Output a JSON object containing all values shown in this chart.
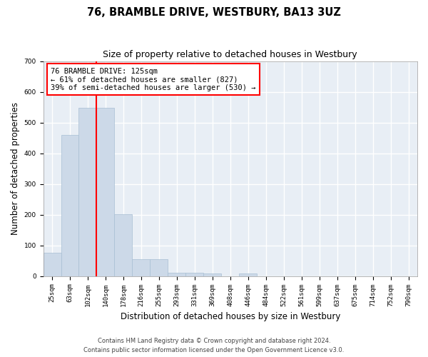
{
  "title": "76, BRAMBLE DRIVE, WESTBURY, BA13 3UZ",
  "subtitle": "Size of property relative to detached houses in Westbury",
  "xlabel": "Distribution of detached houses by size in Westbury",
  "ylabel": "Number of detached properties",
  "bin_labels": [
    "25sqm",
    "63sqm",
    "102sqm",
    "140sqm",
    "178sqm",
    "216sqm",
    "255sqm",
    "293sqm",
    "331sqm",
    "369sqm",
    "408sqm",
    "446sqm",
    "484sqm",
    "522sqm",
    "561sqm",
    "599sqm",
    "637sqm",
    "675sqm",
    "714sqm",
    "752sqm",
    "790sqm"
  ],
  "bar_values": [
    75,
    460,
    548,
    548,
    202,
    55,
    55,
    12,
    12,
    8,
    0,
    8,
    0,
    0,
    0,
    0,
    0,
    0,
    0,
    0,
    0
  ],
  "bar_color": "#ccd9e8",
  "bar_edgecolor": "#a8bfd4",
  "red_line_bin_index": 2.5,
  "annotation_text": "76 BRAMBLE DRIVE: 125sqm\n← 61% of detached houses are smaller (827)\n39% of semi-detached houses are larger (530) →",
  "ylim": [
    0,
    700
  ],
  "yticks": [
    0,
    100,
    200,
    300,
    400,
    500,
    600,
    700
  ],
  "footer_line1": "Contains HM Land Registry data © Crown copyright and database right 2024.",
  "footer_line2": "Contains public sector information licensed under the Open Government Licence v3.0.",
  "plot_bg_color": "#e8eef5",
  "grid_color": "#ffffff",
  "title_fontsize": 10.5,
  "subtitle_fontsize": 9,
  "axis_label_fontsize": 8.5,
  "tick_fontsize": 6.5,
  "footer_fontsize": 6,
  "annotation_fontsize": 7.5
}
